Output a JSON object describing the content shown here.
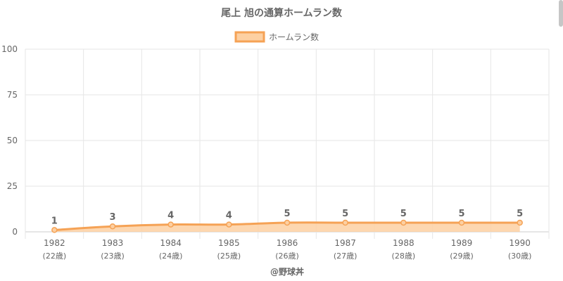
{
  "chart_data": {
    "type": "line",
    "title": "尾上 旭の通算ホームラン数",
    "series": [
      {
        "name": "ホームラン数",
        "values": [
          1,
          3,
          4,
          4,
          5,
          5,
          5,
          5,
          5
        ]
      }
    ],
    "categories": [
      "1982",
      "1983",
      "1984",
      "1985",
      "1986",
      "1987",
      "1988",
      "1989",
      "1990"
    ],
    "category_sublabels": [
      "(22歳)",
      "(23歳)",
      "(24歳)",
      "(25歳)",
      "(26歳)",
      "(27歳)",
      "(28歳)",
      "(29歳)",
      "(30歳)"
    ],
    "ylim": [
      0,
      100
    ],
    "yticks": [
      0,
      25,
      50,
      75,
      100
    ],
    "grid": true,
    "legend": "top-center",
    "colors": {
      "line": "#f5a255",
      "fill": "#fdd0a2",
      "grid": "#e6e6e6",
      "text": "#666666"
    },
    "credit": "@野球丼"
  }
}
